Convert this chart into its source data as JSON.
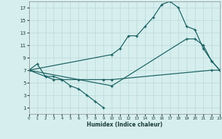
{
  "xlabel": "Humidex (Indice chaleur)",
  "background_color": "#d6eeee",
  "grid_color": "#b8d8d8",
  "line_color": "#1a6060",
  "xlim": [
    0,
    23
  ],
  "ylim": [
    0,
    18
  ],
  "xticks": [
    0,
    1,
    2,
    3,
    4,
    5,
    6,
    7,
    8,
    9,
    10,
    11,
    12,
    13,
    14,
    15,
    16,
    17,
    18,
    19,
    20,
    21,
    22,
    23
  ],
  "yticks": [
    1,
    3,
    5,
    7,
    9,
    11,
    13,
    15,
    17
  ],
  "line1_x": [
    0,
    1,
    2,
    3,
    4,
    5,
    6,
    7,
    8,
    9
  ],
  "line1_y": [
    7,
    8,
    6,
    6,
    5.5,
    4.5,
    4,
    3,
    2,
    1
  ],
  "line2_x": [
    0,
    2,
    3,
    4,
    6,
    9,
    10,
    22,
    23
  ],
  "line2_y": [
    7,
    6,
    5.5,
    5.5,
    5.5,
    5.5,
    5.5,
    7,
    7
  ],
  "line3_x": [
    0,
    10,
    11,
    12,
    13,
    14,
    15,
    16,
    17,
    18,
    19,
    20,
    21,
    22,
    23
  ],
  "line3_y": [
    7,
    9.5,
    10.5,
    12.5,
    12.5,
    14,
    15.5,
    17.5,
    18,
    17,
    14,
    13.5,
    10.5,
    8.5,
    7
  ],
  "line4_x": [
    0,
    10,
    19,
    20,
    21,
    22,
    23
  ],
  "line4_y": [
    7,
    4.5,
    12,
    12,
    11,
    8.5,
    7
  ]
}
